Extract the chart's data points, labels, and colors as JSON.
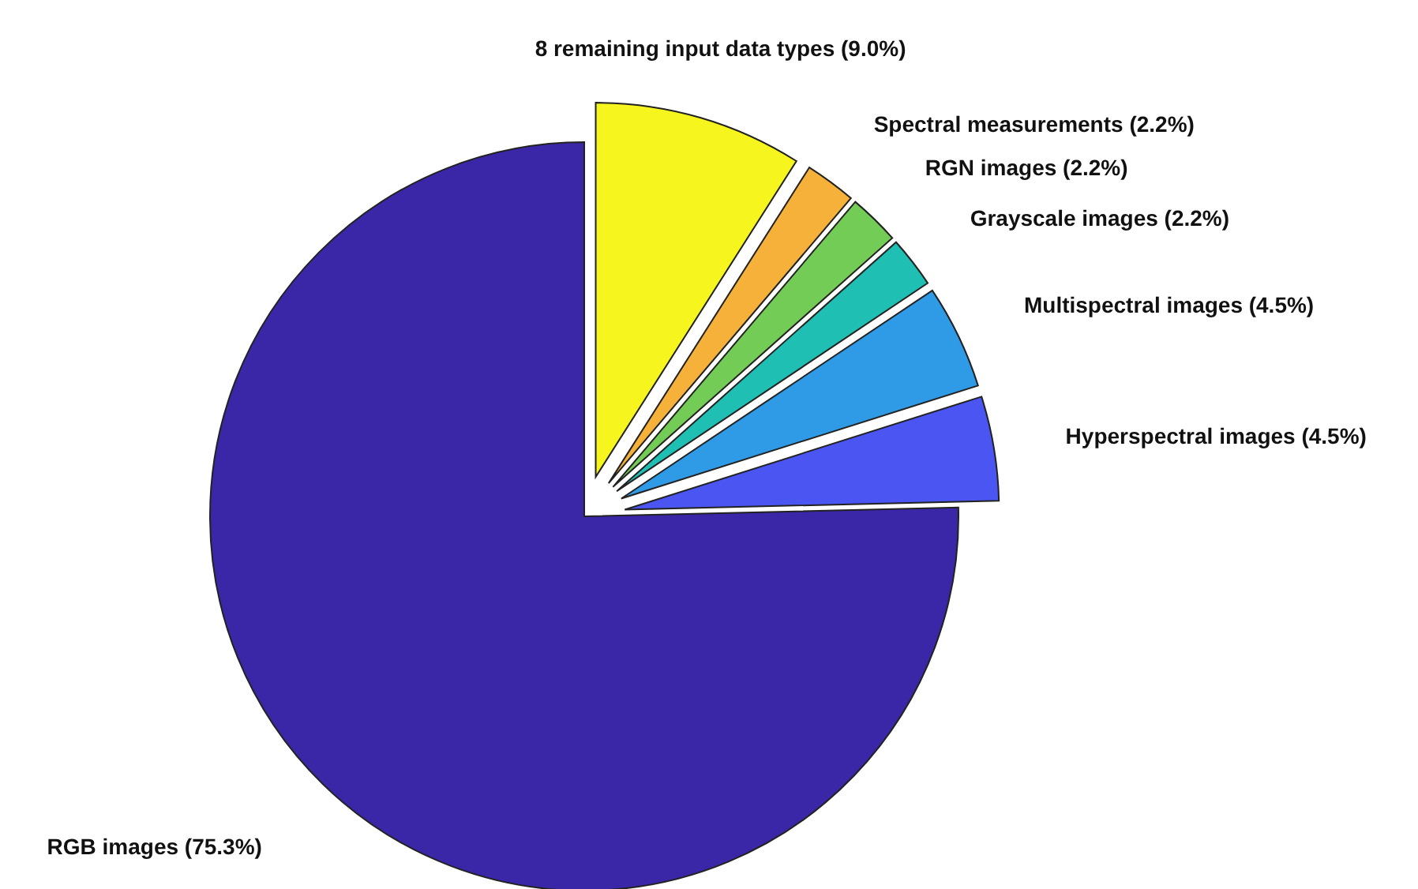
{
  "chart_data": {
    "type": "pie",
    "categories": [
      "RGB images",
      "Hyperspectral images",
      "Multispectral images",
      "Grayscale images",
      "RGN images",
      "Spectral measurements",
      "8 remaining input data types"
    ],
    "values": [
      75.3,
      4.5,
      4.5,
      2.2,
      2.2,
      2.2,
      9.0
    ],
    "value_labels": [
      "(75.3%)",
      "(4.5%)",
      "(4.5%)",
      "(2.2%)",
      "(2.2%)",
      "(2.2%)",
      "(9.0%)"
    ],
    "colors": [
      "#3a27a8",
      "#4a55f2",
      "#2f9ae6",
      "#20bfb3",
      "#72cc55",
      "#f5b13a",
      "#f7f51e"
    ],
    "legend": false
  }
}
